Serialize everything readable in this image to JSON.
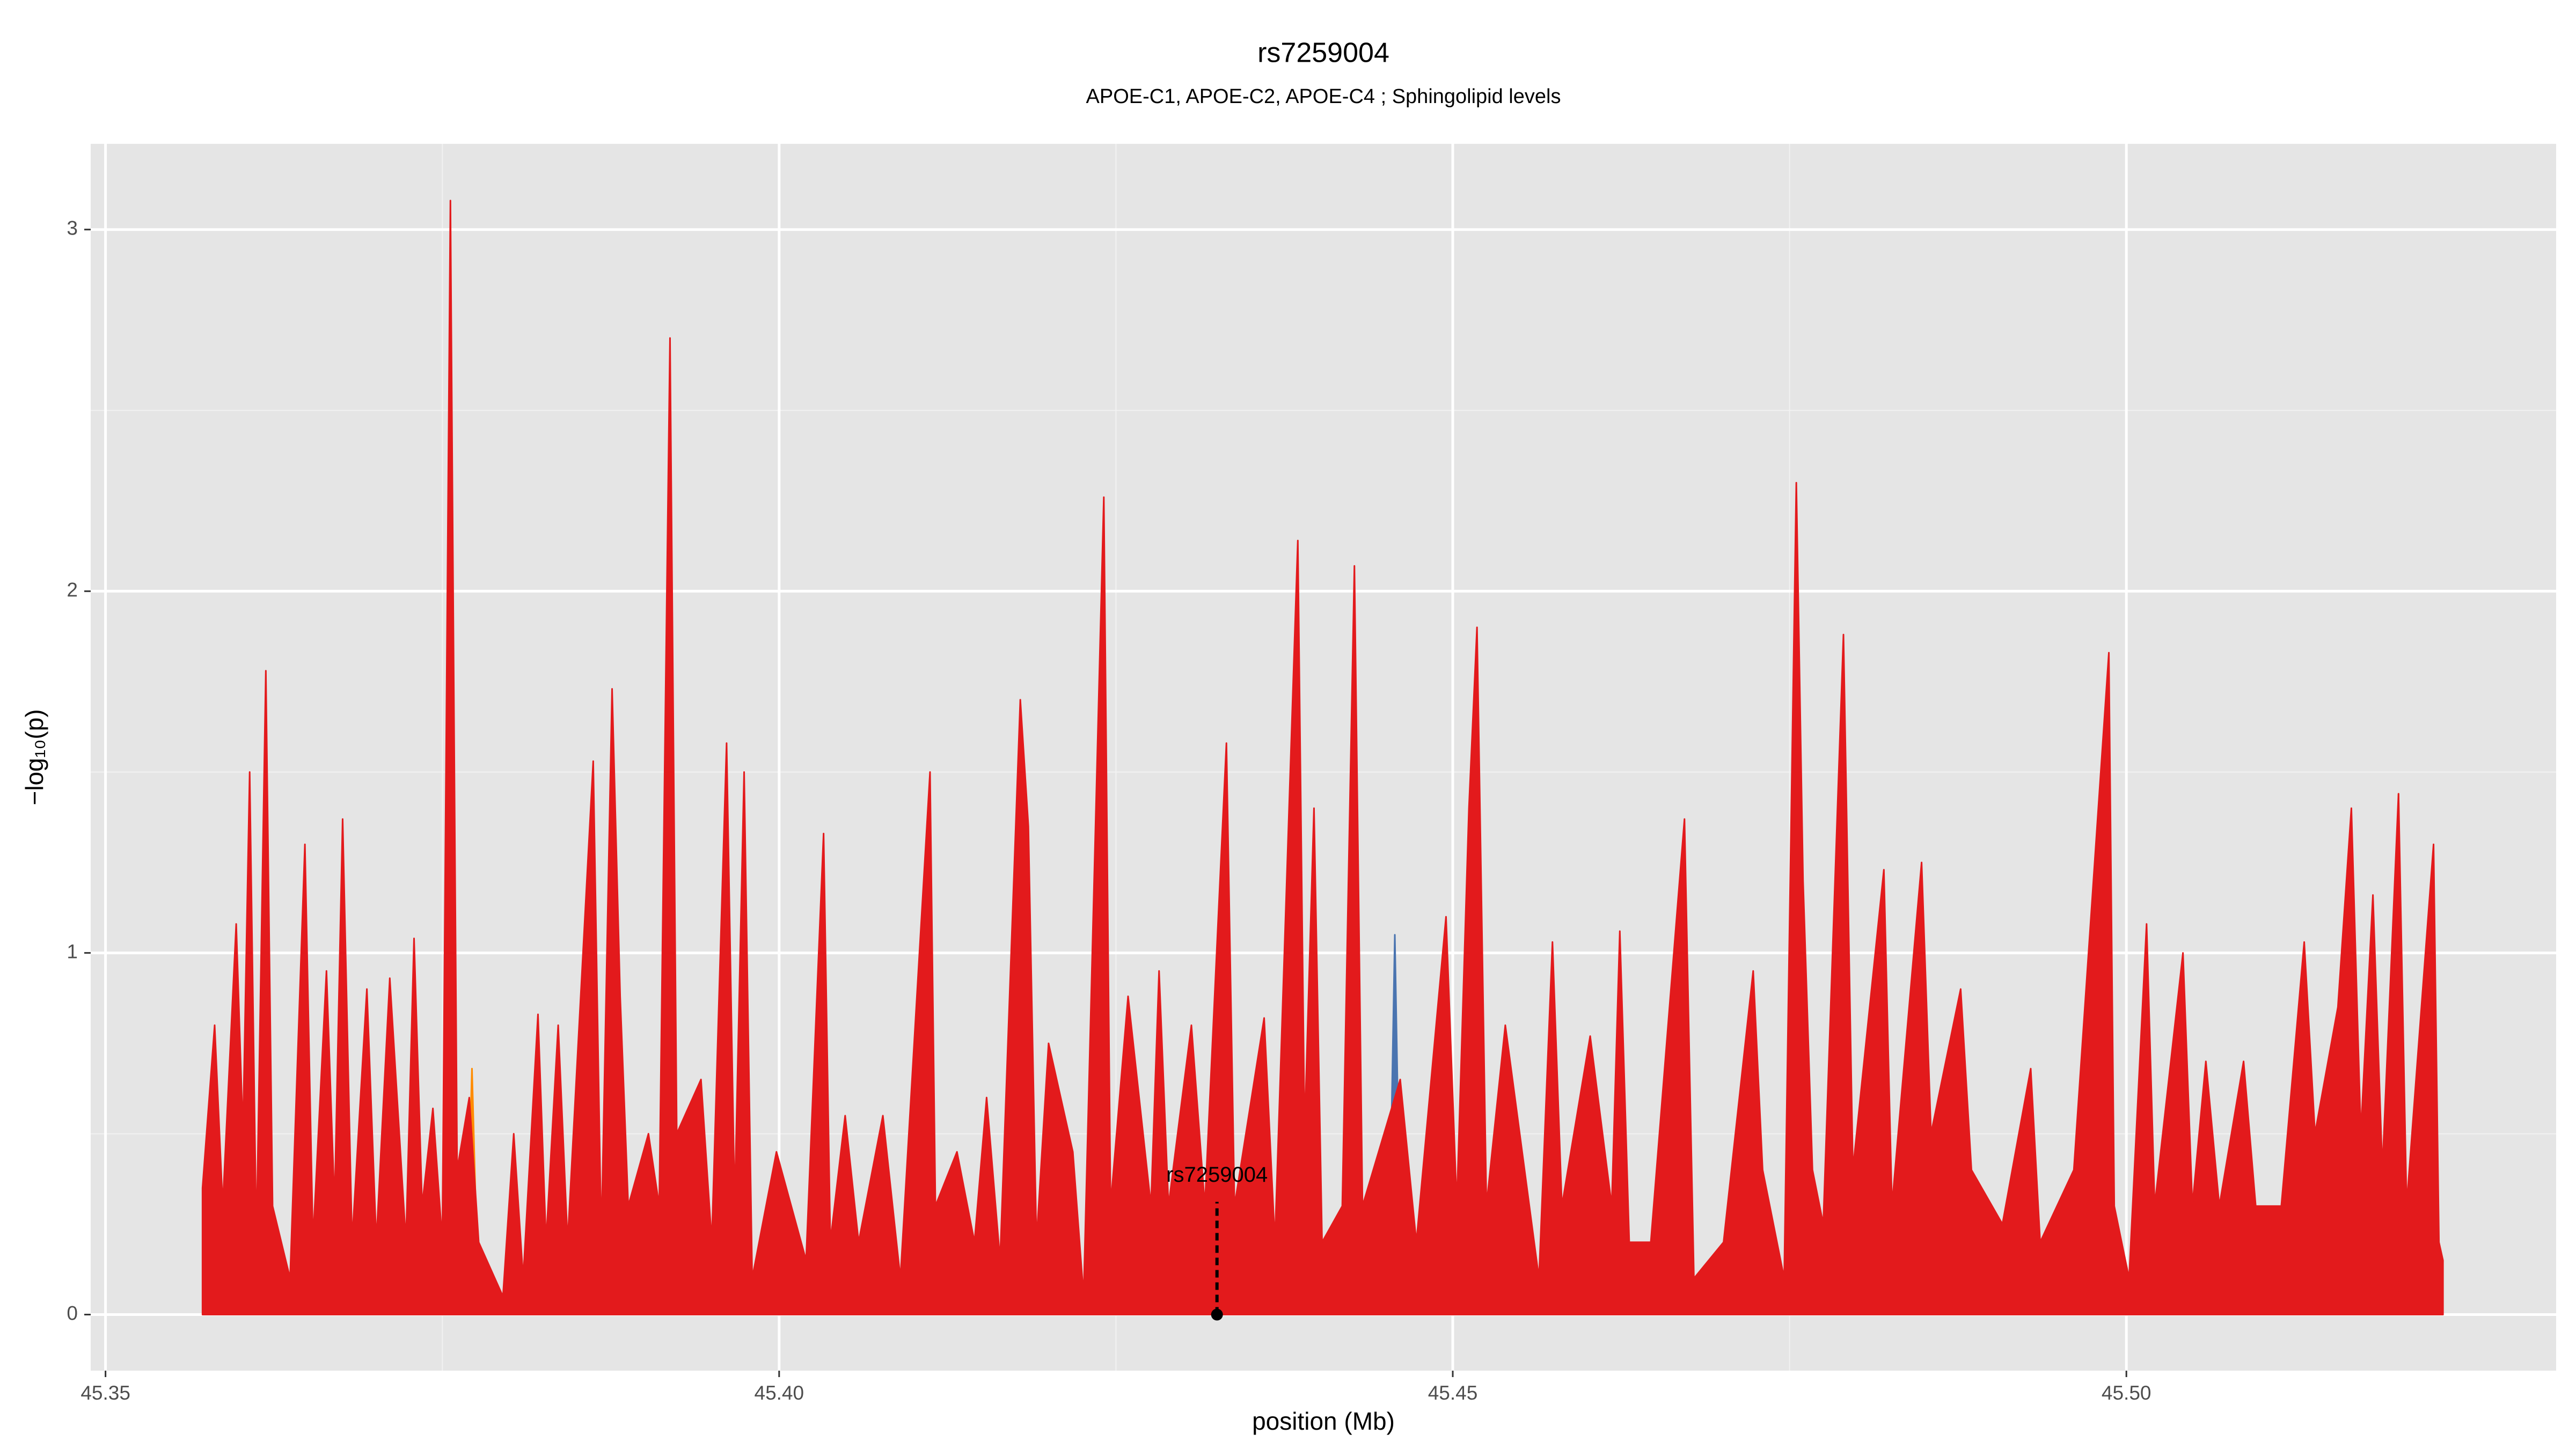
{
  "chart_data": {
    "type": "area",
    "title": "rs7259004",
    "subtitle": "APOE-C1, APOE-C2, APOE-C4 ; Sphingolipid levels",
    "xlabel": "position (Mb)",
    "ylabel": "−log₁₀(p)",
    "xlim": [
      45.3489,
      45.5319
    ],
    "ylim": [
      -0.155,
      3.237
    ],
    "xticks": [
      45.35,
      {
        "value": 45.4,
        "label": "45.40"
      },
      45.45,
      {
        "value": 45.5,
        "label": "45.50"
      }
    ],
    "yticks": [
      0,
      1,
      2,
      3
    ],
    "grid": true,
    "series": [
      {
        "color": "#4a74b0",
        "x": [
          45.3707,
          45.3712,
          45.3717,
          45.4452,
          45.4457,
          45.4462,
          45.4664,
          45.4669,
          45.4674
        ],
        "values": [
          0,
          0.8,
          0,
          0,
          1.05,
          0,
          0,
          0.8,
          0
        ]
      },
      {
        "color": "#ff8c00",
        "x": [
          45.3767,
          45.3772,
          45.3777,
          45.5197,
          45.5202,
          45.5207
        ],
        "values": [
          0,
          0.68,
          0,
          0,
          1.44,
          0
        ]
      },
      {
        "color": "#e31a1c",
        "x": [
          45.3572,
          45.3581,
          45.3587,
          45.3597,
          45.3602,
          45.3607,
          45.3612,
          45.3619,
          45.3624,
          45.3637,
          45.3648,
          45.3654,
          45.3664,
          45.367,
          45.3676,
          45.3683,
          45.3694,
          45.3701,
          45.3711,
          45.3723,
          45.3729,
          45.3735,
          45.3743,
          45.375,
          45.3756,
          45.3761,
          45.377,
          45.3777,
          45.3795,
          45.3803,
          45.381,
          45.3821,
          45.3827,
          45.3836,
          45.3843,
          45.3862,
          45.3868,
          45.3876,
          45.3882,
          45.3888,
          45.3903,
          45.3911,
          45.3919,
          45.3924,
          45.3942,
          45.395,
          45.3961,
          45.3967,
          45.3974,
          45.398,
          45.3998,
          45.402,
          45.4033,
          45.4038,
          45.4049,
          45.4059,
          45.4077,
          45.409,
          45.4112,
          45.4116,
          45.4132,
          45.4145,
          45.4154,
          45.4164,
          45.4179,
          45.4185,
          45.4191,
          45.42,
          45.4218,
          45.4226,
          45.4241,
          45.4246,
          45.4259,
          45.4276,
          45.4282,
          45.4289,
          45.4306,
          45.4316,
          45.4332,
          45.4338,
          45.436,
          45.4368,
          45.4385,
          45.439,
          45.4397,
          45.4403,
          45.4418,
          45.4427,
          45.4433,
          45.4461,
          45.4473,
          45.4495,
          45.4503,
          45.4512,
          45.4518,
          45.4525,
          45.4539,
          45.4564,
          45.4574,
          45.4581,
          45.4602,
          45.4618,
          45.4624,
          45.4631,
          45.4647,
          45.4672,
          45.4679,
          45.4701,
          45.4723,
          45.473,
          45.4746,
          45.4755,
          45.476,
          45.4767,
          45.4775,
          45.479,
          45.4797,
          45.482,
          45.4826,
          45.4848,
          45.4855,
          45.4877,
          45.4885,
          45.4908,
          45.4929,
          45.4936,
          45.4961,
          45.4987,
          45.4991,
          45.5002,
          45.5015,
          45.5021,
          45.5042,
          45.5049,
          45.5059,
          45.5069,
          45.5087,
          45.5096,
          45.5115,
          45.5132,
          45.514,
          45.5157,
          45.5167,
          45.5174,
          45.5183,
          45.519,
          45.5202,
          45.5208,
          45.5228,
          45.5232,
          45.5235
        ],
        "values": [
          0.35,
          0.8,
          0.3,
          1.08,
          0.5,
          1.5,
          0.2,
          1.78,
          0.3,
          0.1,
          1.3,
          0.2,
          0.95,
          0.3,
          1.37,
          0.2,
          0.9,
          0.2,
          0.93,
          0.2,
          1.04,
          0.3,
          0.57,
          0.2,
          3.08,
          0.4,
          0.6,
          0.2,
          0.05,
          0.5,
          0.1,
          0.83,
          0.2,
          0.8,
          0.2,
          1.53,
          0.2,
          1.73,
          0.88,
          0.3,
          0.5,
          0.3,
          2.7,
          0.5,
          0.65,
          0.2,
          1.58,
          0.3,
          1.5,
          0.1,
          0.45,
          0.15,
          1.33,
          0.2,
          0.55,
          0.2,
          0.55,
          0.1,
          1.5,
          0.3,
          0.45,
          0.2,
          0.6,
          0.15,
          1.7,
          1.35,
          0.2,
          0.75,
          0.45,
          0.05,
          2.26,
          0.3,
          0.88,
          0.3,
          0.95,
          0.3,
          0.8,
          0.3,
          1.58,
          0.3,
          0.82,
          0.2,
          2.14,
          0.5,
          1.4,
          0.2,
          0.3,
          2.07,
          0.3,
          0.65,
          0.2,
          1.1,
          0.3,
          1.4,
          1.9,
          0.3,
          0.8,
          0.1,
          1.03,
          0.3,
          0.77,
          0.3,
          1.06,
          0.2,
          0.2,
          1.37,
          0.1,
          0.2,
          0.95,
          0.4,
          0.1,
          2.3,
          1.2,
          0.4,
          0.25,
          1.88,
          0.4,
          1.23,
          0.3,
          1.25,
          0.5,
          0.9,
          0.4,
          0.25,
          0.68,
          0.2,
          0.4,
          1.83,
          0.3,
          0.1,
          1.08,
          0.3,
          1.0,
          0.3,
          0.7,
          0.3,
          0.7,
          0.3,
          0.3,
          1.03,
          0.5,
          0.85,
          1.4,
          0.5,
          1.16,
          0.4,
          1.44,
          0.3,
          1.3,
          0.2,
          0.15
        ]
      }
    ],
    "annotation": {
      "text": "rs7259004",
      "x": 45.4325,
      "y": 0
    }
  }
}
